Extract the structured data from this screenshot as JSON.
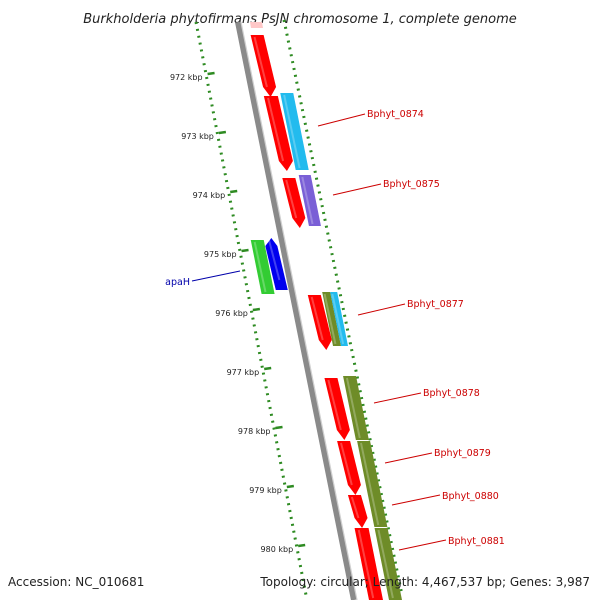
{
  "title": "Burkholderia phytofirmans PsJN chromosome 1, complete genome",
  "footer": {
    "accession": "Accession: NC_010681",
    "summary": "Topology: circular; Length: 4,467,537 bp; Genes: 3,987"
  },
  "ruler": {
    "unit": "kbp",
    "ticks": [
      {
        "label": "972 kbp"
      },
      {
        "label": "973 kbp"
      },
      {
        "label": "974 kbp"
      },
      {
        "label": "975 kbp"
      },
      {
        "label": "976 kbp"
      },
      {
        "label": "977 kbp"
      },
      {
        "label": "978 kbp"
      },
      {
        "label": "979 kbp"
      },
      {
        "label": "980 kbp"
      }
    ]
  },
  "gene_labels": [
    {
      "text": "Bphyt_0874",
      "color": "#cc0000"
    },
    {
      "text": "Bphyt_0875",
      "color": "#cc0000"
    },
    {
      "text": "Bphyt_0877",
      "color": "#cc0000"
    },
    {
      "text": "Bphyt_0878",
      "color": "#cc0000"
    },
    {
      "text": "Bphyt_0879",
      "color": "#cc0000"
    },
    {
      "text": "Bphyt_0880",
      "color": "#cc0000"
    },
    {
      "text": "Bphyt_0881",
      "color": "#cc0000"
    },
    {
      "text": "apaH",
      "color": "#0000aa"
    }
  ],
  "colors": {
    "backbone": "#8a8a8a",
    "ruler": "#2e8b22",
    "cds_red": "#ff0000",
    "cds_cyan": "#22bbee",
    "cds_purple": "#7a5fd6",
    "cds_olive": "#6e8c28",
    "cds_green": "#33cc33",
    "cds_blue": "#0000ee"
  }
}
